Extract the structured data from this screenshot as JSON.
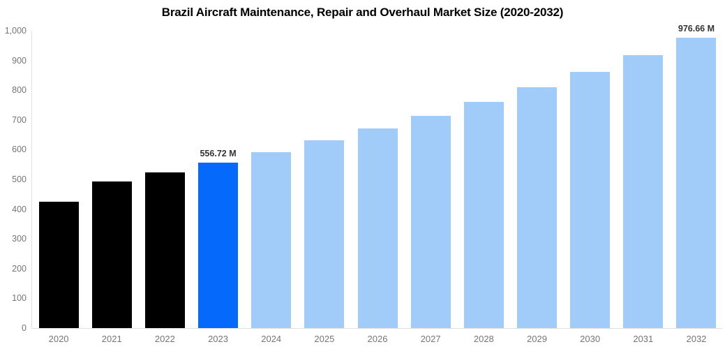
{
  "chart": {
    "title": "Brazil Aircraft Maintenance, Repair and Overhaul Market Size (2020-2032)"
  },
  "colors": {
    "background": "#ffffff",
    "title_text": "#000000",
    "axis_line": "#e0e0e0",
    "tick_text": "#757575",
    "value_label_text": "#333333",
    "historical": "#000000",
    "highlight": "#0569fb",
    "forecast": "#a1ccfa"
  },
  "chart_data": {
    "type": "bar",
    "title": "Brazil Aircraft Maintenance, Repair and Overhaul Market Size (2020-2032)",
    "xlabel": "",
    "ylabel": "",
    "ylim": [
      0,
      1000
    ],
    "grid": false,
    "legend_position": "none",
    "y_ticks": [
      {
        "label": "1,000",
        "value": 1000
      },
      {
        "label": "900",
        "value": 900
      },
      {
        "label": "800",
        "value": 800
      },
      {
        "label": "700",
        "value": 700
      },
      {
        "label": "600",
        "value": 600
      },
      {
        "label": "500",
        "value": 500
      },
      {
        "label": "400",
        "value": 400
      },
      {
        "label": "300",
        "value": 300
      },
      {
        "label": "200",
        "value": 200
      },
      {
        "label": "100",
        "value": 100
      },
      {
        "label": "0",
        "value": 0
      }
    ],
    "categories": [
      "2020",
      "2021",
      "2022",
      "2023",
      "2024",
      "2025",
      "2026",
      "2027",
      "2028",
      "2029",
      "2030",
      "2031",
      "2032"
    ],
    "bars": [
      {
        "year": "2020",
        "value": 425,
        "segment": "historical",
        "label": ""
      },
      {
        "year": "2021",
        "value": 494,
        "segment": "historical",
        "label": ""
      },
      {
        "year": "2022",
        "value": 523,
        "segment": "historical",
        "label": ""
      },
      {
        "year": "2023",
        "value": 556.72,
        "segment": "highlight",
        "label": "556.72 M"
      },
      {
        "year": "2024",
        "value": 592.6,
        "segment": "forecast",
        "label": ""
      },
      {
        "year": "2025",
        "value": 630.8,
        "segment": "forecast",
        "label": ""
      },
      {
        "year": "2026",
        "value": 671.4,
        "segment": "forecast",
        "label": ""
      },
      {
        "year": "2027",
        "value": 714.7,
        "segment": "forecast",
        "label": ""
      },
      {
        "year": "2028",
        "value": 760.8,
        "segment": "forecast",
        "label": ""
      },
      {
        "year": "2029",
        "value": 809.8,
        "segment": "forecast",
        "label": ""
      },
      {
        "year": "2030",
        "value": 862.0,
        "segment": "forecast",
        "label": ""
      },
      {
        "year": "2031",
        "value": 917.5,
        "segment": "forecast",
        "label": ""
      },
      {
        "year": "2032",
        "value": 976.66,
        "segment": "forecast",
        "label": "976.66 M"
      }
    ]
  }
}
